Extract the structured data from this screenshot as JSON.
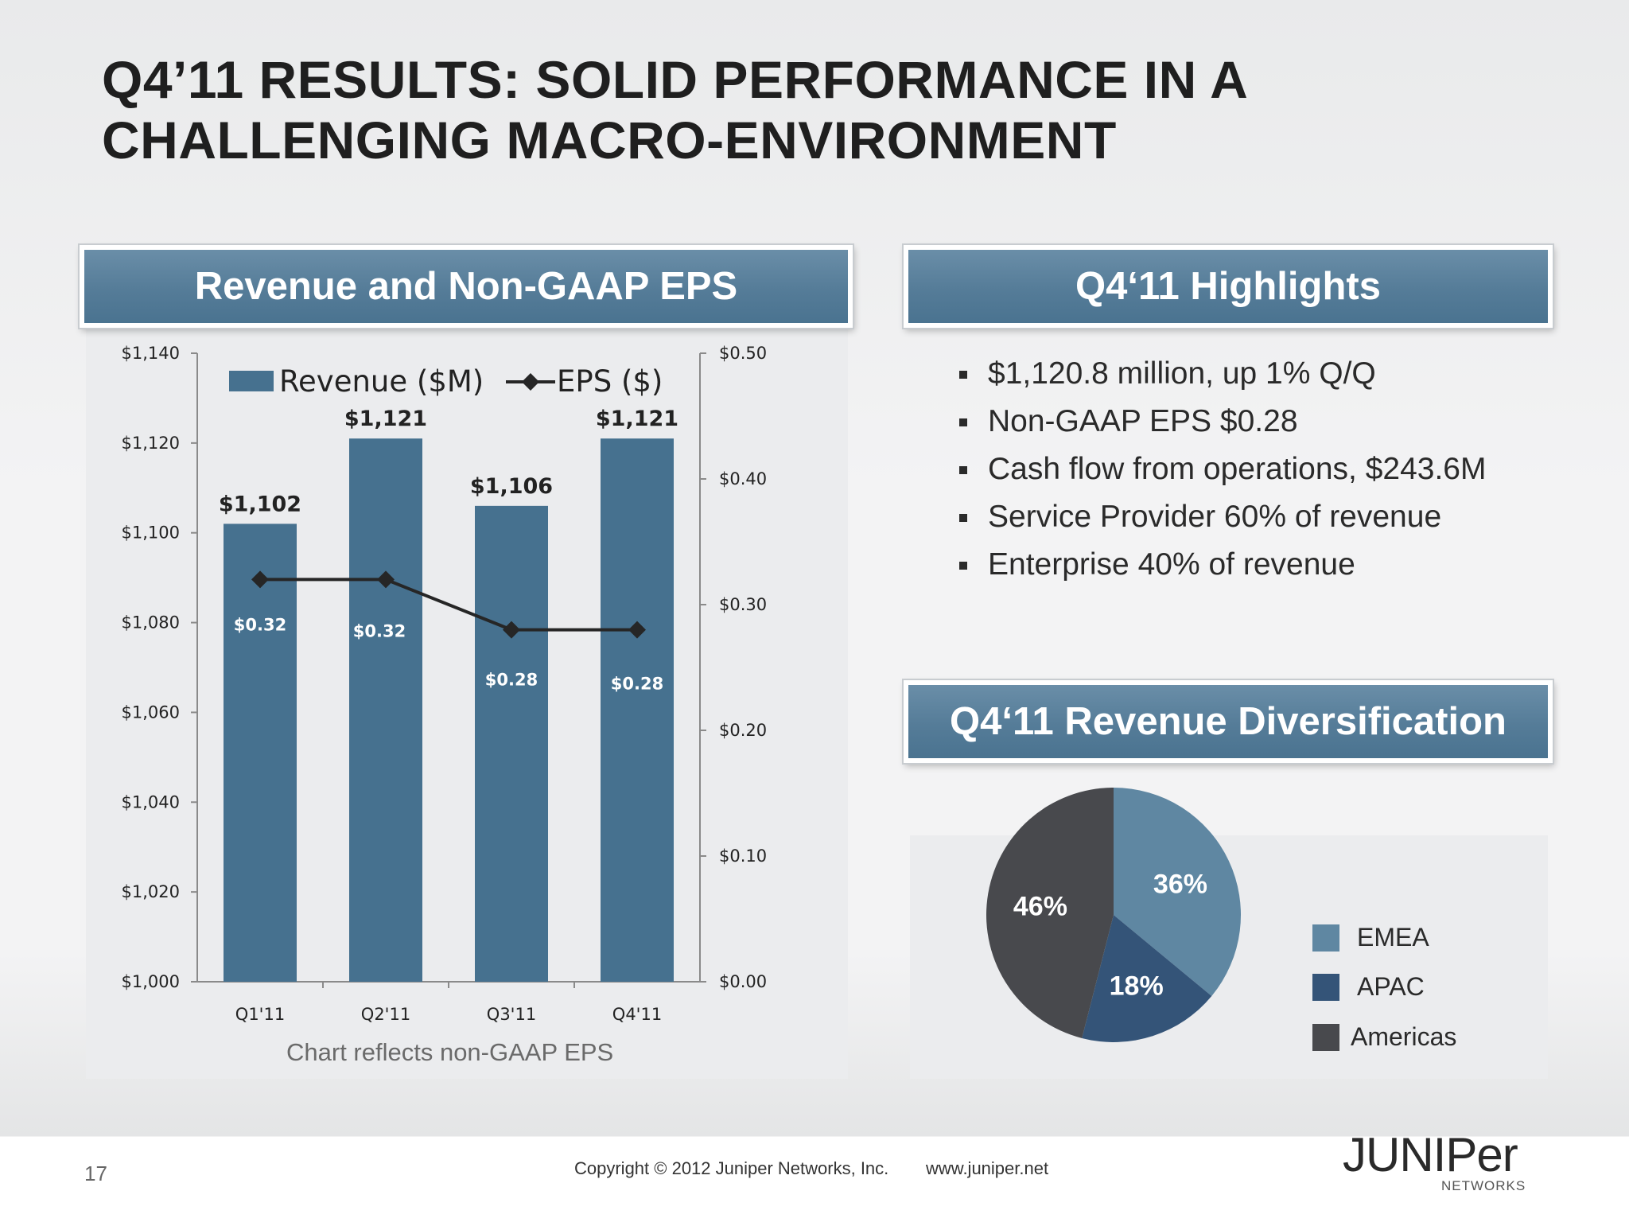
{
  "title": {
    "line1": "Q4’11 RESULTS: SOLID PERFORMANCE IN A",
    "line2": "CHALLENGING MACRO-ENVIRONMENT"
  },
  "panels": {
    "revenue_header": "Revenue and Non-GAAP EPS",
    "highlights_header": "Q4‘11 Highlights",
    "diversification_header": "Q4‘11 Revenue Diversification"
  },
  "highlights": [
    "$1,120.8 million, up 1% Q/Q",
    "Non-GAAP EPS $0.28",
    "Cash flow from operations, $243.6M",
    "Service Provider 60% of revenue",
    "Enterprise 40% of revenue"
  ],
  "chart_note": "Chart reflects non-GAAP EPS",
  "footer": {
    "page": "17",
    "copyright": "Copyright © 2012 Juniper Networks, Inc.",
    "url": "www.juniper.net",
    "logo_word": "JUNIPer",
    "logo_sub": "NETWORKS"
  },
  "colors": {
    "bar": "#46718f",
    "line": "#262626",
    "emea": "#5f87a2",
    "apac": "#345478",
    "americas": "#48494d"
  },
  "chart_data": [
    {
      "type": "bar",
      "categories": [
        "Q1'11",
        "Q2'11",
        "Q3'11",
        "Q4'11"
      ],
      "series": [
        {
          "name": "Revenue ($M)",
          "values": [
            1102,
            1121,
            1106,
            1121
          ],
          "labels": [
            "$1,102",
            "$1,121",
            "$1,106",
            "$1,121"
          ],
          "axis": "left"
        },
        {
          "name": "EPS ($)",
          "type": "line",
          "values": [
            0.32,
            0.32,
            0.28,
            0.28
          ],
          "labels": [
            "$0.32",
            "$0.32",
            "$0.28",
            "$0.28"
          ],
          "axis": "right"
        }
      ],
      "ylim": [
        1000,
        1140
      ],
      "yticks": [
        "$1,000",
        "$1,020",
        "$1,040",
        "$1,060",
        "$1,080",
        "$1,100",
        "$1,120",
        "$1,140"
      ],
      "y2lim": [
        0,
        0.5
      ],
      "y2ticks": [
        "$0.00",
        "$0.10",
        "$0.20",
        "$0.30",
        "$0.40",
        "$0.50"
      ],
      "legend_position": "top"
    },
    {
      "type": "pie",
      "labels": [
        "EMEA",
        "APAC",
        "Americas"
      ],
      "values": [
        36,
        18,
        46
      ],
      "value_labels": [
        "36%",
        "18%",
        "46%"
      ],
      "legend_position": "right"
    }
  ]
}
